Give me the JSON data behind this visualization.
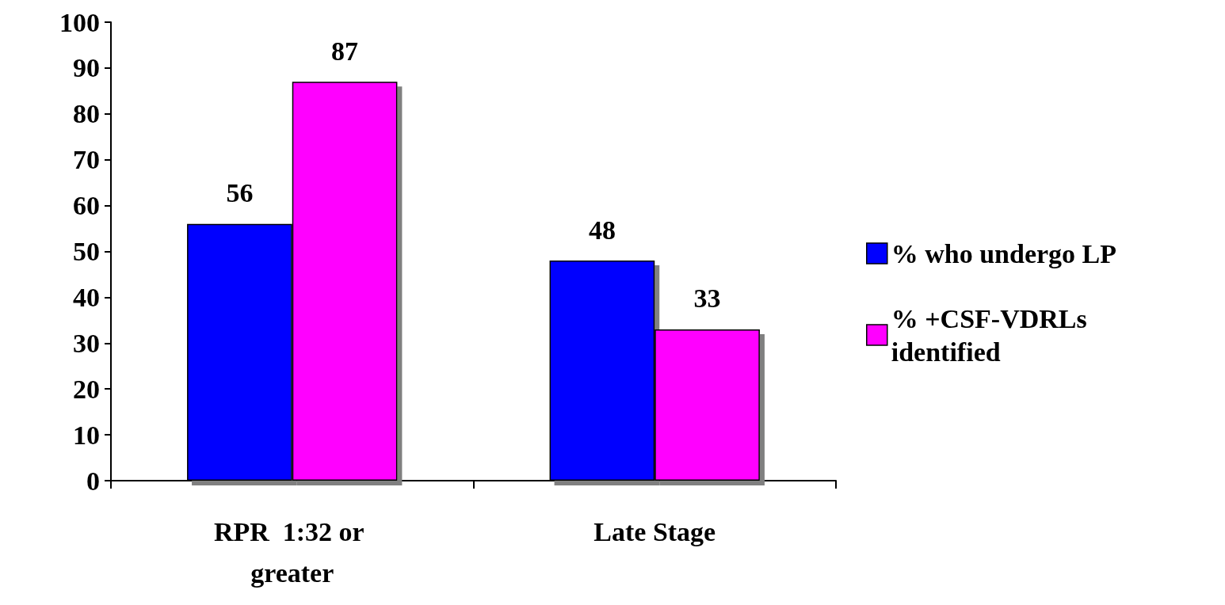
{
  "chart_data": {
    "type": "bar",
    "categories": [
      "RPR  1:32 or greater",
      "Late Stage"
    ],
    "series": [
      {
        "name": "% who undergo LP",
        "color": "#0000ff",
        "values": [
          56,
          48
        ]
      },
      {
        "name": "% +CSF-VDRLs identified",
        "color": "#ff00ff",
        "values": [
          87,
          33
        ]
      }
    ],
    "ylim": [
      0,
      100
    ],
    "yticks": [
      0,
      10,
      20,
      30,
      40,
      50,
      60,
      70,
      80,
      90,
      100
    ],
    "grid": false,
    "legend": "right",
    "data_labels": true
  }
}
